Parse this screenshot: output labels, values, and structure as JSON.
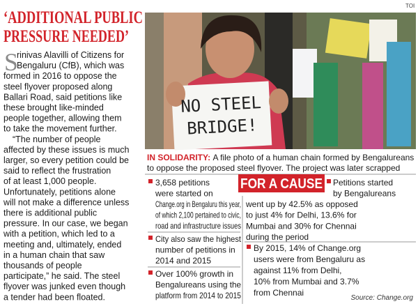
{
  "source_label": "TOI",
  "headline": {
    "lines": [
      "‘ADDITIONAL PUBLIC",
      "PRESSURE NEEDED’"
    ]
  },
  "article": {
    "drop_cap": "S",
    "lines": [
      "rinivas Alavilli of Citizens for",
      "Bengaluru (CfB), which was",
      "formed in 2016 to oppose the",
      "steel flyover proposed along",
      "Ballari Road, said petitions like",
      "these brought like-minded",
      "people together, allowing them",
      "to take the movement further.",
      "“The number of people",
      "affected by these issues is much",
      "larger, so every petition could be",
      "said to reflect the frustration",
      "of at least 1,000 people.",
      "Unfortunately, petitions alone",
      "will not make a difference unless",
      "there is additional public",
      "pressure. In our case, we began",
      "with a petition, which led to a",
      "meeting and, ultimately, ended",
      "in a human chain that saw",
      "thousands of people",
      "participate,” he said. The steel",
      "flyover was junked even though",
      "a tender had been floated."
    ]
  },
  "photo": {
    "sign_lines": [
      "NO STEEL",
      "BRIDGE!"
    ],
    "caption_lead": "IN SOLIDARITY:",
    "caption_lines": [
      "A file photo of a human chain formed by Bengalureans",
      "to oppose the proposed steel flyover. The project was later scrapped"
    ]
  },
  "factbox": {
    "title": "FOR A CAUSE",
    "left_bullets": [
      {
        "lines": [
          "3,658 petitions",
          "were started on",
          "Change.org in Bengaluru this year,",
          "of which 2,100 pertained to civic,",
          "road and infrastructure issues"
        ]
      },
      {
        "lines": [
          "City also saw the highest",
          "number of petitions in",
          "2014 and 2015"
        ]
      },
      {
        "lines": [
          "Over 100% growth in",
          "Bengalureans using the",
          "platform from 2014 to 2015"
        ]
      }
    ],
    "right_bullets": [
      {
        "lines": [
          "Petitions started",
          "by Bengalureans",
          "went up by 42.5% as opposed",
          "to just 4% for Delhi, 13.6% for",
          "Mumbai and 30% for Chennai",
          "during the period"
        ]
      },
      {
        "lines": [
          "By 2015, 14% of Change.org",
          "users were from Bengaluru as",
          "against 11% from Delhi,",
          "10% from Mumbai and 3.7%",
          "from Chennai"
        ]
      }
    ],
    "source": "Source: Change.org"
  }
}
